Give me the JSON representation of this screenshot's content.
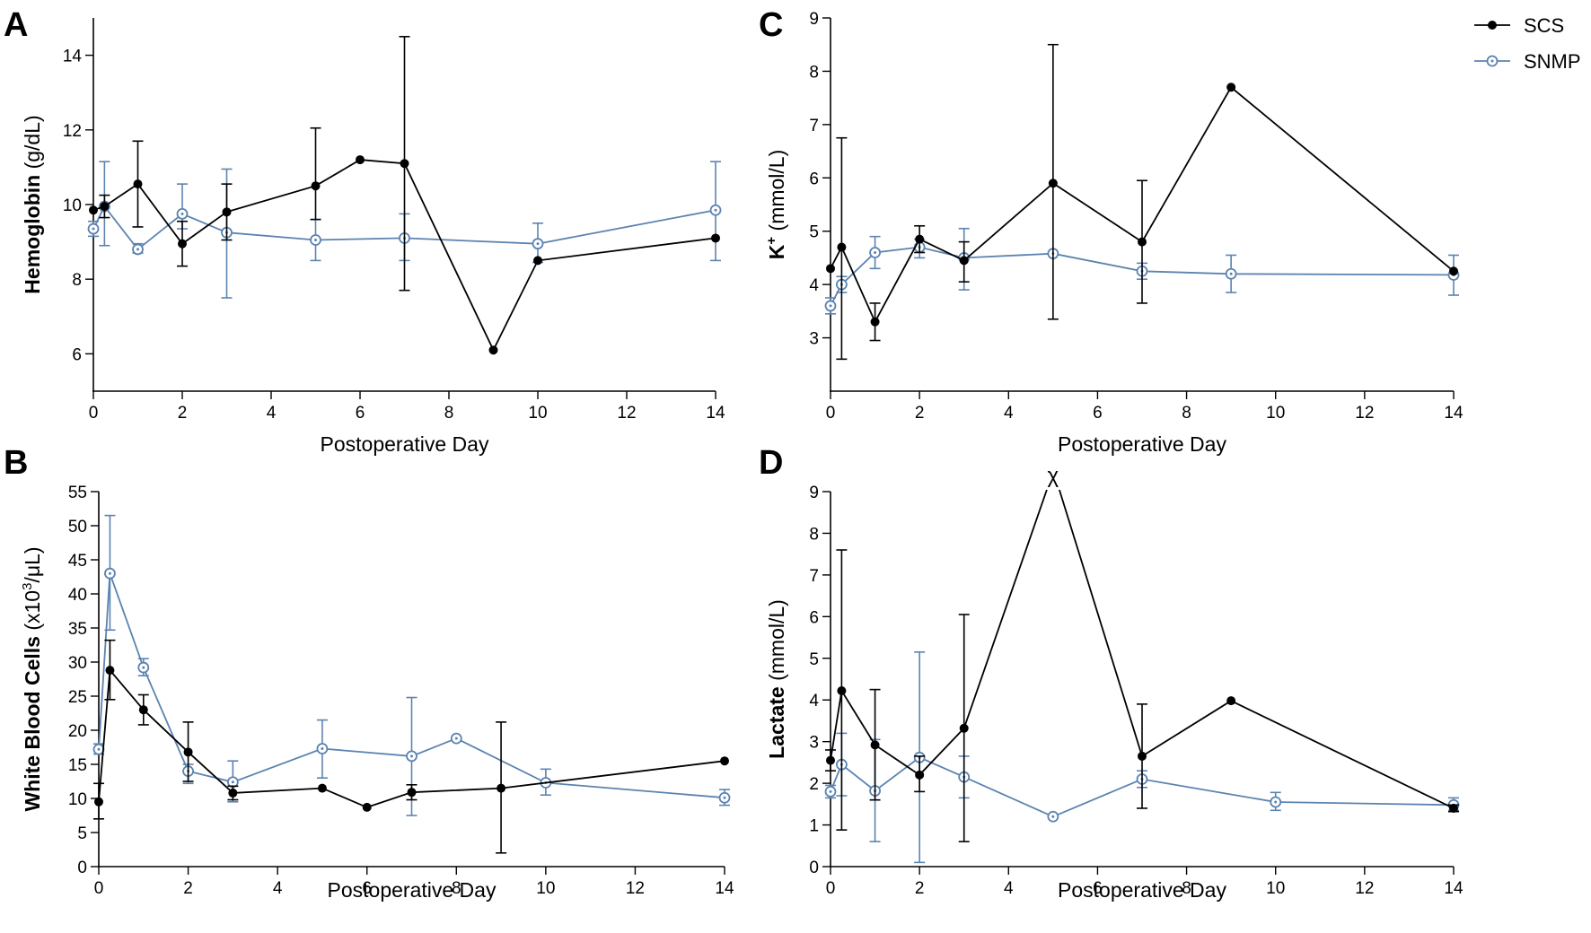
{
  "colors": {
    "scs": "#000000",
    "snmp": "#5b83b1"
  },
  "legend": {
    "scs": "SCS",
    "snmp": "SNMP"
  },
  "chart_data": [
    {
      "panel": "A",
      "type": "line",
      "xlabel": "Postoperative Day",
      "ylabel_bold": "Hemoglobin",
      "ylabel_rest": " (g/dL)",
      "xlim": [
        0,
        14
      ],
      "ylim": [
        5,
        15
      ],
      "xticks": [
        0,
        2,
        4,
        6,
        8,
        10,
        12,
        14
      ],
      "yticks": [
        6,
        8,
        10,
        12,
        14
      ],
      "series": [
        {
          "name": "SCS",
          "x": [
            0,
            0.25,
            1,
            2,
            3,
            5,
            6,
            7,
            9,
            10,
            14
          ],
          "y": [
            9.85,
            9.95,
            10.55,
            8.95,
            9.8,
            10.5,
            11.2,
            11.1,
            6.1,
            8.5,
            9.1
          ],
          "err_low": [
            null,
            9.65,
            9.4,
            8.35,
            9.05,
            9.6,
            null,
            7.7,
            null,
            null,
            null
          ],
          "err_high": [
            null,
            10.25,
            11.7,
            9.55,
            10.55,
            12.05,
            null,
            14.5,
            null,
            null,
            null
          ]
        },
        {
          "name": "SNMP",
          "x": [
            0,
            0.25,
            1,
            2,
            3,
            5,
            7,
            10,
            14
          ],
          "y": [
            9.35,
            9.95,
            8.8,
            9.75,
            9.25,
            9.05,
            9.1,
            8.95,
            9.85
          ],
          "err_low": [
            9.15,
            8.9,
            8.7,
            9.35,
            7.5,
            8.5,
            8.5,
            8.45,
            8.5
          ],
          "err_high": [
            9.55,
            11.15,
            8.95,
            10.55,
            10.95,
            9.6,
            9.75,
            9.5,
            11.15
          ]
        }
      ]
    },
    {
      "panel": "C",
      "type": "line",
      "xlabel": "Postoperative Day",
      "ylabel_bold": "K",
      "ylabel_sup": "+",
      "ylabel_rest": " (mmol/L)",
      "xlim": [
        0,
        14
      ],
      "ylim": [
        2,
        9
      ],
      "xticks": [
        0,
        2,
        4,
        6,
        8,
        10,
        12,
        14
      ],
      "yticks": [
        3,
        4,
        5,
        6,
        7,
        8,
        9
      ],
      "series": [
        {
          "name": "SCS",
          "x": [
            0,
            0.25,
            1,
            2,
            3,
            5,
            7,
            9,
            14
          ],
          "y": [
            4.3,
            4.7,
            3.3,
            4.85,
            4.45,
            5.9,
            4.8,
            7.7,
            4.25
          ],
          "err_low": [
            null,
            2.6,
            2.95,
            4.6,
            4.05,
            3.35,
            3.65,
            null,
            null
          ],
          "err_high": [
            null,
            6.75,
            3.65,
            5.1,
            4.8,
            8.5,
            5.95,
            null,
            null
          ]
        },
        {
          "name": "SNMP",
          "x": [
            0,
            0.25,
            1,
            2,
            3,
            5,
            7,
            9,
            14
          ],
          "y": [
            3.6,
            4.0,
            4.6,
            4.7,
            4.5,
            4.58,
            4.25,
            4.2,
            4.18
          ],
          "err_low": [
            3.45,
            3.85,
            4.3,
            4.5,
            3.9,
            null,
            4.1,
            3.85,
            3.8
          ],
          "err_high": [
            3.75,
            4.15,
            4.9,
            4.85,
            5.05,
            null,
            4.4,
            4.55,
            4.55
          ]
        }
      ]
    },
    {
      "panel": "B",
      "type": "line",
      "xlabel": "Postoperative Day",
      "ylabel_bold": "White Blood Cells",
      "ylabel_rest": " (x10",
      "ylabel_sup": "3",
      "ylabel_rest2": "/μL)",
      "xlim": [
        0,
        14
      ],
      "ylim": [
        0,
        55
      ],
      "xticks": [
        0,
        2,
        4,
        6,
        8,
        10,
        12,
        14
      ],
      "yticks": [
        0,
        5,
        10,
        15,
        20,
        25,
        30,
        35,
        40,
        45,
        50,
        55
      ],
      "series": [
        {
          "name": "SCS",
          "x": [
            0,
            0.25,
            1,
            2,
            3,
            5,
            6,
            7,
            9,
            14
          ],
          "y": [
            9.5,
            28.8,
            23.0,
            16.8,
            10.8,
            11.5,
            8.7,
            10.9,
            11.5,
            15.5
          ],
          "err_low": [
            7.0,
            24.5,
            20.8,
            12.5,
            9.8,
            null,
            null,
            9.8,
            2.0,
            null
          ],
          "err_high": [
            12.2,
            33.2,
            25.2,
            21.2,
            11.8,
            null,
            null,
            12.0,
            21.2,
            null
          ]
        },
        {
          "name": "SNMP",
          "x": [
            0,
            0.25,
            1,
            2,
            3,
            5,
            7,
            8,
            10,
            14
          ],
          "y": [
            17.2,
            43.0,
            29.2,
            14.0,
            12.4,
            17.3,
            16.2,
            18.8,
            12.3,
            10.1
          ],
          "err_low": [
            16.5,
            34.7,
            28.0,
            12.2,
            9.5,
            13.0,
            7.5,
            null,
            10.5,
            9.0
          ],
          "err_high": [
            18.0,
            51.5,
            30.5,
            15.0,
            15.5,
            21.5,
            24.8,
            null,
            14.3,
            11.3
          ]
        }
      ]
    },
    {
      "panel": "D",
      "type": "line",
      "xlabel": "Postoperative Day",
      "ylabel_bold": "Lactate",
      "ylabel_rest": " (mmol/L)",
      "xlim": [
        0,
        14
      ],
      "ylim": [
        0,
        9
      ],
      "xticks": [
        0,
        2,
        4,
        6,
        8,
        10,
        12,
        14
      ],
      "yticks": [
        0,
        1,
        2,
        3,
        4,
        5,
        6,
        7,
        8,
        9
      ],
      "annotation": {
        "text": "χ",
        "x": 5
      },
      "series": [
        {
          "name": "SCS",
          "x": [
            0,
            0.25,
            1,
            2,
            3,
            5,
            7,
            9,
            14
          ],
          "y": [
            2.55,
            4.22,
            2.92,
            2.2,
            3.32,
            9.0,
            2.65,
            3.98,
            1.4
          ],
          "y_offchart": [
            false,
            false,
            false,
            false,
            false,
            true,
            false,
            false,
            false
          ],
          "err_low": [
            2.3,
            0.88,
            1.6,
            1.8,
            0.6,
            null,
            1.4,
            null,
            1.32
          ],
          "err_high": [
            2.8,
            7.6,
            4.25,
            2.65,
            6.05,
            null,
            3.9,
            null,
            1.48
          ]
        },
        {
          "name": "SNMP",
          "x": [
            0,
            0.25,
            1,
            2,
            3,
            5,
            7,
            10,
            14
          ],
          "y": [
            1.8,
            2.45,
            1.82,
            2.62,
            2.15,
            1.2,
            2.1,
            1.55,
            1.48
          ],
          "err_low": [
            1.65,
            1.7,
            0.6,
            0.1,
            1.65,
            null,
            1.9,
            1.35,
            1.35
          ],
          "err_high": [
            1.95,
            3.2,
            3.05,
            5.15,
            2.65,
            null,
            2.3,
            1.78,
            1.65
          ]
        }
      ]
    }
  ]
}
